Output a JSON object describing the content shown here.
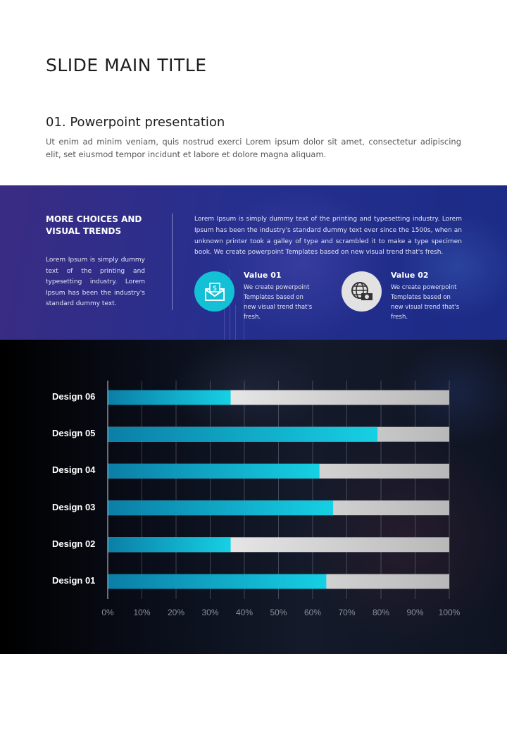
{
  "slide": {
    "title": "SLIDE MAIN TITLE",
    "section_title": "01. Powerpoint presentation",
    "intro": "Ut enim ad minim veniam, quis nostrud exerci Lorem ipsum dolor sit amet, consectetur adipiscing elit, set eiusmod tempor incidunt et labore et dolore magna aliquam."
  },
  "band": {
    "heading": "MORE CHOICES AND VISUAL TRENDS",
    "left_text": "Lorem Ipsum is simply dummy text of the printing and typesetting industry. Lorem Ipsum has been the industry's standard dummy text.",
    "right_text": "Lorem Ipsum is simply dummy text of the printing and typesetting industry. Lorem Ipsum has been the industry's standard dummy text ever since the 1500s, when an unknown printer took a galley of type and scrambled it to make a type specimen book. We create powerpoint Templates based on new visual trend that's fresh.",
    "values": [
      {
        "title": "Value 01",
        "text": "We create powerpoint Templates based on new visual trend that's fresh.",
        "icon": "money-envelope-icon",
        "color": "#13c0d6"
      },
      {
        "title": "Value 02",
        "text": "We create powerpoint Templates based on new visual trend that's fresh.",
        "icon": "globe-money-icon",
        "color": "#e2e2e2"
      }
    ]
  },
  "colors": {
    "bar_fill_start": "#0b7ea6",
    "bar_fill_end": "#16d0e4",
    "bar_rest_start": "#ffffff",
    "bar_rest_end": "#b8b8b8"
  },
  "chart_data": {
    "type": "bar",
    "orientation": "horizontal",
    "stacked_to_100": true,
    "categories": [
      "Design 06",
      "Design 05",
      "Design 04",
      "Design 03",
      "Design 02",
      "Design 01"
    ],
    "values": [
      36,
      79,
      62,
      66,
      36,
      64
    ],
    "xlim": [
      0,
      100
    ],
    "x_ticks": [
      "0%",
      "10%",
      "20%",
      "30%",
      "40%",
      "50%",
      "60%",
      "70%",
      "80%",
      "90%",
      "100%"
    ],
    "grid": true
  }
}
